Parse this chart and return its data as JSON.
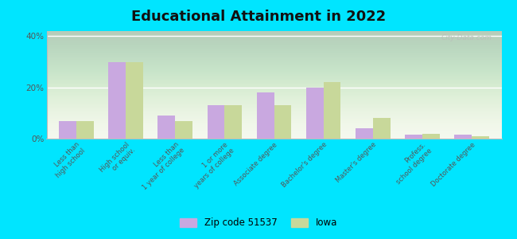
{
  "title": "Educational Attainment in 2022",
  "categories": [
    "Less than\nhigh school",
    "High school\nor equiv.",
    "Less than\n1 year of college",
    "1 or more\nyears of college",
    "Associate degree",
    "Bachelor's degree",
    "Master's degree",
    "Profess.\nschool degree",
    "Doctorate degree"
  ],
  "zip_values": [
    7,
    30,
    9,
    13,
    18,
    20,
    4,
    1.5,
    1.5
  ],
  "iowa_values": [
    7,
    30,
    7,
    13,
    13,
    22,
    8,
    2,
    1
  ],
  "zip_color": "#c9a8e0",
  "iowa_color": "#c8d89a",
  "background_outer": "#00e5ff",
  "background_plot_bottom": "#f5f8ee",
  "background_plot_top": "#deecd8",
  "ylim": [
    0,
    42
  ],
  "yticks": [
    0,
    20,
    40
  ],
  "ytick_labels": [
    "0%",
    "20%",
    "40%"
  ],
  "legend_zip_label": "Zip code 51537",
  "legend_iowa_label": "Iowa",
  "bar_width": 0.35,
  "watermark": "City-Data.com"
}
